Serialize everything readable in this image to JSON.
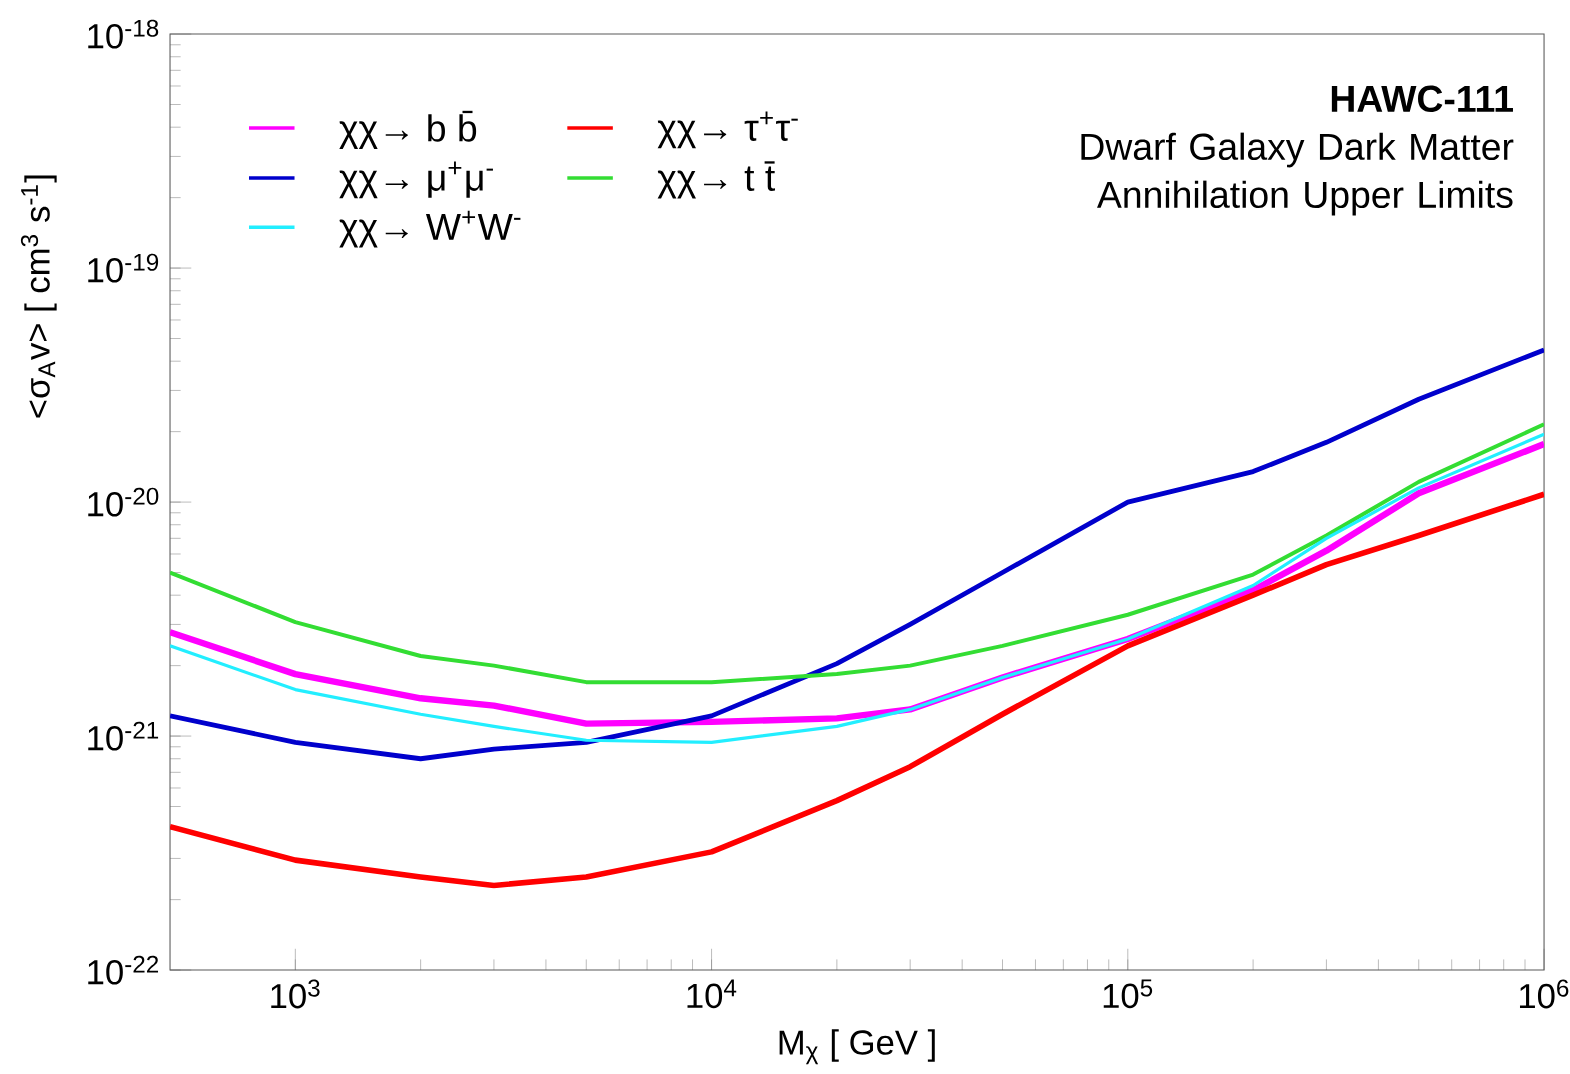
{
  "chart_data": {
    "type": "line",
    "title": "HAWC-111",
    "subtitle": "Dwarf Galaxy Dark Matter Annihilation Upper Limits",
    "xlabel": "M$_{χ}$ [ GeV ]",
    "ylabel": "<σ$_{A}$v> [ cm$^{3}$ s$^{-1}$]",
    "x": [
      500,
      1000,
      2000,
      3000,
      5000,
      10000,
      20000,
      30000,
      50000,
      100000,
      200000,
      300000,
      500000,
      1000000
    ],
    "series": [
      {
        "name": "χχ→ b b̄",
        "color": "#ff00ff",
        "values": [
          2.78e-21,
          1.84e-21,
          1.45e-21,
          1.35e-21,
          1.13e-21,
          1.15e-21,
          1.19e-21,
          1.3e-21,
          1.78e-21,
          2.6e-21,
          4.2e-21,
          6.2e-21,
          1.09e-20,
          1.77e-20
        ]
      },
      {
        "name": "χχ→ τ$^{+}$τ$^{-}$",
        "color": "#ff0000",
        "values": [
          4.1e-22,
          2.95e-22,
          2.5e-22,
          2.3e-22,
          2.5e-22,
          3.2e-22,
          5.3e-22,
          7.4e-22,
          1.24e-21,
          2.43e-21,
          4e-21,
          5.4e-21,
          7.2e-21,
          1.08e-20
        ]
      },
      {
        "name": "χχ→ μ$^{+}$μ$^{-}$",
        "color": "#0000cc",
        "values": [
          1.22e-21,
          9.4e-22,
          8e-22,
          8.8e-22,
          9.4e-22,
          1.22e-21,
          2.04e-21,
          3e-21,
          5e-21,
          1e-20,
          1.35e-20,
          1.8e-20,
          2.75e-20,
          4.47e-20
        ]
      },
      {
        "name": "χχ→ t t̄",
        "color": "#33dd33",
        "values": [
          5e-21,
          3.07e-21,
          2.2e-21,
          2e-21,
          1.7e-21,
          1.7e-21,
          1.84e-21,
          2e-21,
          2.43e-21,
          3.3e-21,
          4.9e-21,
          7.2e-21,
          1.22e-20,
          2.15e-20
        ]
      },
      {
        "name": "χχ→ W$^{+}$W$^{-}$",
        "color": "#22eeff",
        "values": [
          2.43e-21,
          1.58e-21,
          1.24e-21,
          1.1e-21,
          9.6e-22,
          9.4e-22,
          1.1e-21,
          1.3e-21,
          1.78e-21,
          2.6e-21,
          4.4e-21,
          7e-21,
          1.15e-20,
          1.95e-20
        ]
      }
    ],
    "xlim": [
      500,
      1000000
    ],
    "ylim": [
      1e-22,
      1e-18
    ],
    "xticks": [
      {
        "value": 1000,
        "label": "10$^{3}$"
      },
      {
        "value": 10000,
        "label": "10$^{4}$"
      },
      {
        "value": 100000,
        "label": "10$^{5}$"
      },
      {
        "value": 1000000,
        "label": "10$^{6}$"
      }
    ],
    "yticks": [
      {
        "value": 1e-22,
        "label": "10$^{-22}$"
      },
      {
        "value": 1e-21,
        "label": "10$^{-21}$"
      },
      {
        "value": 1e-20,
        "label": "10$^{-20}$"
      },
      {
        "value": 1e-19,
        "label": "10$^{-19}$"
      },
      {
        "value": 1e-18,
        "label": "10$^{-18}$"
      }
    ],
    "log": "xy",
    "legend": "top left",
    "grid": false
  }
}
